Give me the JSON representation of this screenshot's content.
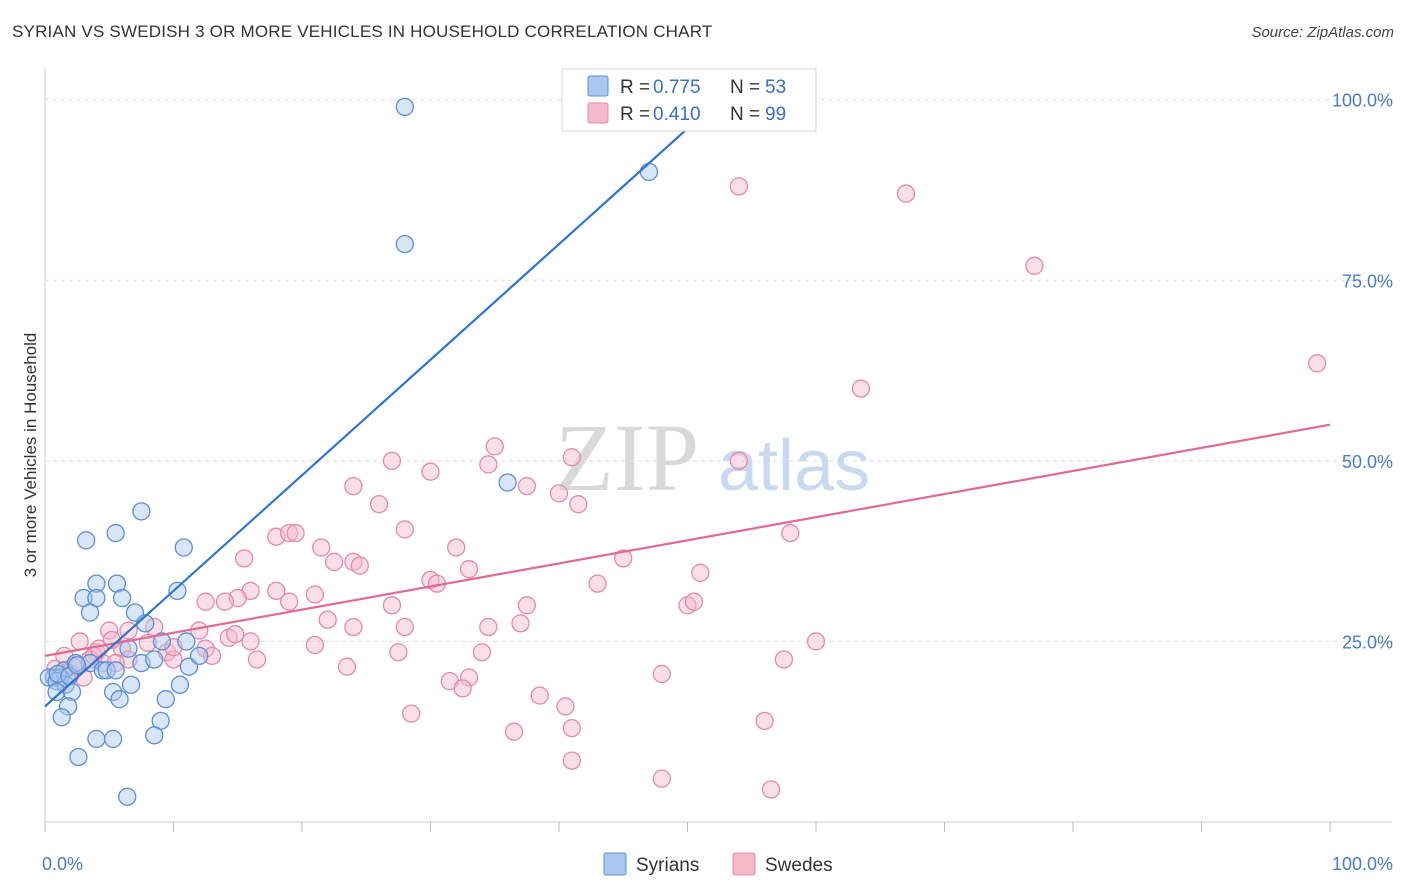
{
  "title": "SYRIAN VS SWEDISH 3 OR MORE VEHICLES IN HOUSEHOLD CORRELATION CHART",
  "source": "Source: ZipAtlas.com",
  "watermark": {
    "part1": "ZIP",
    "part2": "atlas"
  },
  "colors": {
    "syrians_fill": "#a9c7ef",
    "syrians_stroke": "#5b8fd6",
    "syrians_line": "#2f74d0",
    "swedes_fill": "#f5b9cc",
    "swedes_stroke": "#e48aa8",
    "swedes_line": "#e06a94",
    "tick": "#4a7bc8",
    "grid": "#dddddd"
  },
  "legend_top": [
    {
      "r_label": "R =",
      "r_value": "0.775",
      "n_label": "N =",
      "n_value": "53",
      "series": "syrians"
    },
    {
      "r_label": "R =",
      "r_value": "0.410",
      "n_label": "N =",
      "n_value": "99",
      "series": "swedes"
    }
  ],
  "chart_data": {
    "type": "scatter",
    "title": "SYRIAN VS SWEDISH 3 OR MORE VEHICLES IN HOUSEHOLD CORRELATION CHART",
    "xlabel": "",
    "ylabel": "3 or more Vehicles in Household",
    "xlim": [
      0,
      100
    ],
    "ylim": [
      0,
      103
    ],
    "x_tick_labels": [
      {
        "value": 0,
        "label": "0.0%"
      },
      {
        "value": 100,
        "label": "100.0%"
      }
    ],
    "y_tick_labels": [
      {
        "value": 25,
        "label": "25.0%"
      },
      {
        "value": 50,
        "label": "50.0%"
      },
      {
        "value": 75,
        "label": "75.0%"
      },
      {
        "value": 100,
        "label": "100.0%"
      }
    ],
    "grid": "horizontal dashed",
    "legend_placement": "bottom-center",
    "series": [
      {
        "name": "Syrians",
        "r": 0.775,
        "n": 53,
        "trend": {
          "x0": 0,
          "y0": 16,
          "x1": 50,
          "y1": 96
        },
        "points": [
          [
            28,
            99
          ],
          [
            47,
            90
          ],
          [
            28,
            80
          ],
          [
            36,
            47
          ],
          [
            7.5,
            43
          ],
          [
            5.5,
            40
          ],
          [
            3.2,
            39
          ],
          [
            10.8,
            38
          ],
          [
            4,
            33
          ],
          [
            5.6,
            33
          ],
          [
            10.3,
            32
          ],
          [
            3,
            31
          ],
          [
            4,
            31
          ],
          [
            6,
            31
          ],
          [
            3.5,
            29
          ],
          [
            7,
            29
          ],
          [
            7.8,
            27.5
          ],
          [
            6.5,
            24
          ],
          [
            3.5,
            22
          ],
          [
            1.5,
            21
          ],
          [
            0.7,
            20
          ],
          [
            1.2,
            20
          ],
          [
            0.3,
            20
          ],
          [
            0.9,
            19.5
          ],
          [
            1.6,
            19
          ],
          [
            2.4,
            22
          ],
          [
            4.5,
            21
          ],
          [
            4.8,
            21
          ],
          [
            6.7,
            19
          ],
          [
            7.5,
            22
          ],
          [
            9.1,
            25
          ],
          [
            11,
            25
          ],
          [
            11.2,
            21.5
          ],
          [
            10.5,
            19
          ],
          [
            9.4,
            17
          ],
          [
            0.9,
            18
          ],
          [
            2.1,
            18
          ],
          [
            5.3,
            18
          ],
          [
            5.8,
            17
          ],
          [
            1.8,
            16
          ],
          [
            1.3,
            14.5
          ],
          [
            9,
            14
          ],
          [
            8.5,
            12
          ],
          [
            4,
            11.5
          ],
          [
            5.3,
            11.5
          ],
          [
            2.6,
            9
          ],
          [
            6.4,
            3.5
          ],
          [
            8.5,
            22.5
          ],
          [
            5.5,
            21
          ],
          [
            1,
            20.5
          ],
          [
            1.9,
            20.2
          ],
          [
            2.5,
            21.7
          ],
          [
            12,
            23
          ]
        ]
      },
      {
        "name": "Swedes",
        "r": 0.41,
        "n": 99,
        "trend": {
          "x0": 0,
          "y0": 23,
          "x1": 100,
          "y1": 55
        },
        "points": [
          [
            54,
            88
          ],
          [
            67,
            87
          ],
          [
            77,
            77
          ],
          [
            99,
            63.5
          ],
          [
            63.5,
            60
          ],
          [
            35,
            52
          ],
          [
            27,
            50
          ],
          [
            34.5,
            49.5
          ],
          [
            41,
            50.5
          ],
          [
            54,
            50
          ],
          [
            30,
            48.5
          ],
          [
            24,
            46.5
          ],
          [
            37.5,
            46.5
          ],
          [
            40,
            45.5
          ],
          [
            26,
            44
          ],
          [
            41.5,
            44
          ],
          [
            28,
            40.5
          ],
          [
            58,
            40
          ],
          [
            18,
            39.5
          ],
          [
            19,
            40
          ],
          [
            19.5,
            40
          ],
          [
            21.5,
            38
          ],
          [
            32,
            38
          ],
          [
            45,
            36.5
          ],
          [
            15.5,
            36.5
          ],
          [
            24,
            36
          ],
          [
            22.5,
            36
          ],
          [
            24.5,
            35.5
          ],
          [
            33,
            35
          ],
          [
            51,
            34.5
          ],
          [
            30,
            33.5
          ],
          [
            30.5,
            33
          ],
          [
            43,
            33
          ],
          [
            16,
            32
          ],
          [
            18,
            32
          ],
          [
            15,
            31
          ],
          [
            21,
            31.5
          ],
          [
            12.5,
            30.5
          ],
          [
            14,
            30.5
          ],
          [
            19,
            30.5
          ],
          [
            27,
            30
          ],
          [
            37.5,
            30
          ],
          [
            50,
            30
          ],
          [
            50.5,
            30.5
          ],
          [
            22,
            28
          ],
          [
            24,
            27
          ],
          [
            28,
            27
          ],
          [
            34.5,
            27
          ],
          [
            37,
            27.5
          ],
          [
            8.5,
            27
          ],
          [
            12,
            26.5
          ],
          [
            5,
            26.5
          ],
          [
            6.5,
            26.5
          ],
          [
            14.3,
            25.5
          ],
          [
            16,
            25
          ],
          [
            21,
            24.5
          ],
          [
            6,
            24
          ],
          [
            4,
            23.5
          ],
          [
            9.5,
            23.5
          ],
          [
            12.5,
            24
          ],
          [
            27.5,
            23.5
          ],
          [
            34,
            23.5
          ],
          [
            60,
            25
          ],
          [
            57.5,
            22.5
          ],
          [
            4.5,
            22
          ],
          [
            6.5,
            22.5
          ],
          [
            10,
            22.5
          ],
          [
            16.5,
            22.5
          ],
          [
            13,
            23
          ],
          [
            23.5,
            21.5
          ],
          [
            31.5,
            19.5
          ],
          [
            33,
            20
          ],
          [
            32.5,
            18.5
          ],
          [
            48,
            20.5
          ],
          [
            1.5,
            21
          ],
          [
            2,
            20.5
          ],
          [
            3,
            20
          ],
          [
            1,
            20
          ],
          [
            3.5,
            22.5
          ],
          [
            5.5,
            22
          ],
          [
            38.5,
            17.5
          ],
          [
            40.5,
            16
          ],
          [
            28.5,
            15
          ],
          [
            56,
            14
          ],
          [
            41,
            13
          ],
          [
            36.5,
            12.5
          ],
          [
            41,
            8.5
          ],
          [
            48,
            6
          ],
          [
            56.5,
            4.5
          ],
          [
            1.5,
            23
          ],
          [
            2.2,
            21.5
          ],
          [
            3.8,
            23
          ],
          [
            2.7,
            25
          ],
          [
            8,
            24.8
          ],
          [
            10,
            24.2
          ],
          [
            14.8,
            26
          ],
          [
            4.2,
            24
          ],
          [
            5.2,
            25.2
          ],
          [
            0.8,
            21.2
          ]
        ]
      }
    ]
  },
  "legend_bottom": [
    {
      "label": "Syrians",
      "series": "syrians"
    },
    {
      "label": "Swedes",
      "series": "swedes"
    }
  ]
}
